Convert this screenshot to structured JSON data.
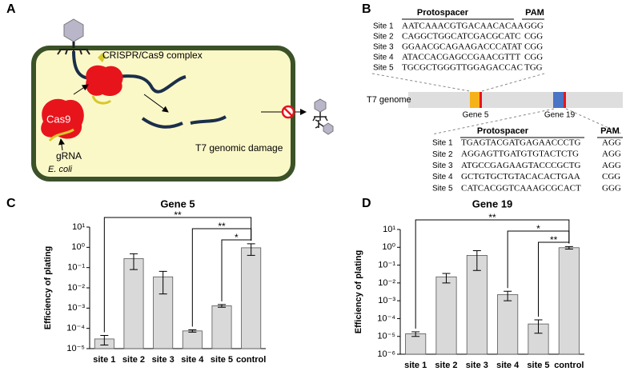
{
  "panel_labels": [
    "A",
    "B",
    "C",
    "D"
  ],
  "diagram": {
    "complex": "CRISPR/Cas9 complex",
    "cas9": "Cas9",
    "grna": "gRNA",
    "damage": "T7 genomic damage",
    "host": "E. coli"
  },
  "genome": {
    "label": "T7 genome",
    "gene_a": "Gene 5",
    "gene_b": "Gene 19"
  },
  "tables": [
    {
      "header": [
        "Protospacer",
        "PAM"
      ],
      "rows": [
        [
          "Site 1",
          "AATCAAACGTGACAACACAA",
          "GGG"
        ],
        [
          "Site 2",
          "CAGGCTGGCATCGACGCATC",
          "CGG"
        ],
        [
          "Site 3",
          "GGAACGCAGAAGACCCATAT",
          "CGG"
        ],
        [
          "Site 4",
          "ATACCACGAGCCGAACGTTT",
          "CGG"
        ],
        [
          "Site 5",
          "TGCGCTGGGTTGGAGACCAC",
          "TGG"
        ]
      ]
    },
    {
      "header": [
        "Protospacer",
        "PAM"
      ],
      "rows": [
        [
          "Site 1",
          "TGAGTACGATGAGAACCCTG",
          "AGG"
        ],
        [
          "Site 2",
          "AGGAGTTGATGTGTACTCTG",
          "AGG"
        ],
        [
          "Site 3",
          "ATGCCGAGAAGTACCCGCTG",
          "AGG"
        ],
        [
          "Site 4",
          "GCTGTGCTGTACACACTGAA",
          "CGG"
        ],
        [
          "Site 5",
          "CATCACGGTCAAAGCGCACT",
          "GGG"
        ]
      ]
    }
  ],
  "chart_data": [
    {
      "type": "bar",
      "title": "Gene 5",
      "y_label": "Efficiency of plating",
      "log_scale": true,
      "color": "#d9d9d9",
      "categories": [
        "site 1",
        "site 2",
        "site 3",
        "site 4",
        "site 5",
        "control"
      ],
      "values": [
        3e-05,
        0.28,
        0.035,
        7.5e-05,
        0.0013,
        0.95
      ],
      "errors": [
        1.5e-05,
        0.2,
        0.03,
        1e-05,
        0.0002,
        0.55
      ],
      "ylim": [
        1e-05,
        10
      ],
      "yticks": [
        {
          "value": 1e-05,
          "label": "10⁻⁵"
        },
        {
          "value": 0.0001,
          "label": "10⁻⁴"
        },
        {
          "value": 0.001,
          "label": "10⁻³"
        },
        {
          "value": 0.01,
          "label": "10⁻²"
        },
        {
          "value": 0.1,
          "label": "10⁻¹"
        },
        {
          "value": 1,
          "label": "10⁰"
        },
        {
          "value": 10,
          "label": "10¹"
        }
      ],
      "annotations": [
        {
          "text": "**",
          "from": "site 1",
          "to": "control"
        },
        {
          "text": "**",
          "from": "site 4",
          "to": "control"
        },
        {
          "text": "*",
          "from": "site 5",
          "to": "control"
        }
      ]
    },
    {
      "type": "bar",
      "title": "Gene 19",
      "y_label": "Efficiency of plating",
      "log_scale": true,
      "color": "#d9d9d9",
      "categories": [
        "site 1",
        "site 2",
        "site 3",
        "site 4",
        "site 5",
        "control"
      ],
      "values": [
        1.4e-05,
        0.022,
        0.35,
        0.0022,
        5e-05,
        0.95
      ],
      "errors": [
        4e-06,
        0.012,
        0.3,
        0.0012,
        3.5e-05,
        0.15
      ],
      "ylim": [
        1e-06,
        10
      ],
      "yticks": [
        {
          "value": 1e-06,
          "label": "10⁻⁶"
        },
        {
          "value": 1e-05,
          "label": "10⁻⁵"
        },
        {
          "value": 0.0001,
          "label": "10⁻⁴"
        },
        {
          "value": 0.001,
          "label": "10⁻³"
        },
        {
          "value": 0.01,
          "label": "10⁻²"
        },
        {
          "value": 0.1,
          "label": "10⁻¹"
        },
        {
          "value": 1,
          "label": "10⁰"
        },
        {
          "value": 10,
          "label": "10¹"
        }
      ],
      "annotations": [
        {
          "text": "**",
          "from": "site 1",
          "to": "control"
        },
        {
          "text": "*",
          "from": "site 4",
          "to": "control"
        },
        {
          "text": "**",
          "from": "site 5",
          "to": "control"
        }
      ]
    }
  ]
}
